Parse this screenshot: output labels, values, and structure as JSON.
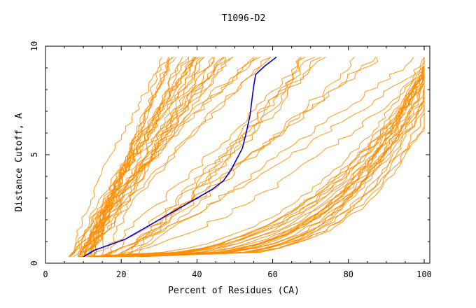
{
  "chart_data": {
    "type": "line",
    "title": "T1096-D2",
    "xlabel": "Percent of Residues (CA)",
    "ylabel": "Distance Cutoff, A",
    "xlim": [
      0,
      100
    ],
    "ylim": [
      0,
      10
    ],
    "x_ticks": [
      "0",
      "20",
      "40",
      "60",
      "80",
      "100"
    ],
    "y_ticks": [
      "0",
      "5",
      "10"
    ],
    "grid": false,
    "legend": "none",
    "background_series_color": "#ff8c00",
    "highlight_series_color": "#0000cd",
    "highlight_series": {
      "x": [
        10,
        13,
        17,
        21,
        24,
        28,
        32,
        36,
        40,
        44,
        47,
        49,
        50.5,
        52,
        53,
        54,
        54.5,
        55,
        55.5,
        58,
        61
      ],
      "y": [
        0.3,
        0.6,
        0.85,
        1.1,
        1.4,
        1.8,
        2.2,
        2.6,
        3.0,
        3.4,
        3.8,
        4.3,
        4.8,
        5.3,
        6.0,
        6.8,
        7.5,
        8.2,
        8.7,
        9.1,
        9.5
      ]
    },
    "groups": [
      {
        "count": 18,
        "x_at_0_3": [
          6,
          13
        ],
        "x_at_9_5": [
          25,
          41
        ],
        "exponent": [
          0.8,
          1.3
        ],
        "wiggle": 1.8
      },
      {
        "count": 14,
        "x_at_0_3": [
          8,
          17
        ],
        "x_at_9_5": [
          30,
          56
        ],
        "exponent": [
          0.9,
          1.4
        ],
        "wiggle": 2.2
      },
      {
        "count": 12,
        "x_at_0_3": [
          12,
          24
        ],
        "x_at_9_5": [
          55,
          94
        ],
        "exponent": [
          0.65,
          1.05
        ],
        "wiggle": 3.0
      },
      {
        "count": 28,
        "x_at_0_3": [
          9,
          26
        ],
        "x_at_9_5": [
          91,
          100
        ],
        "exponent": [
          0.22,
          0.38
        ],
        "wiggle": 1.6
      }
    ]
  }
}
